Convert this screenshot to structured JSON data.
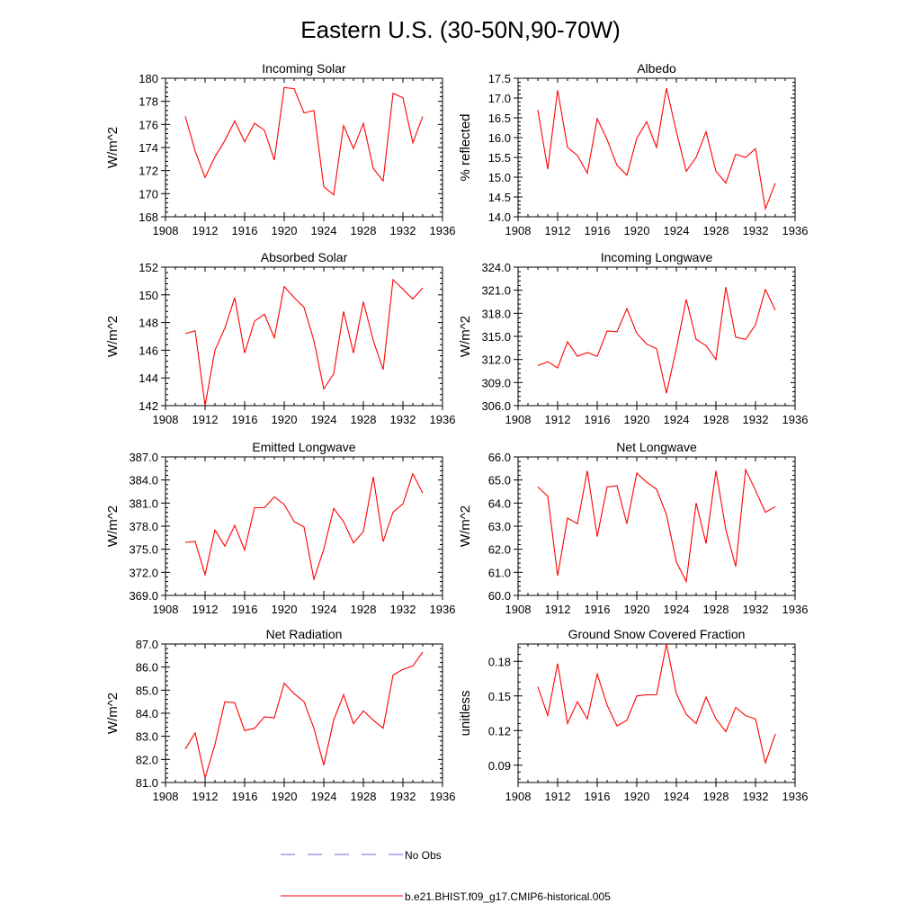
{
  "figure": {
    "title": "Eastern U.S. (30-50N,90-70W)"
  },
  "colors": {
    "model": "#ff0000",
    "obs": "#6b6bdd",
    "axis": "#000000"
  },
  "legend": {
    "obs_label": "No Obs",
    "model_label": "b.e21.BHIST.f09_g17.CMIP6-historical.005"
  },
  "chart_data": [
    {
      "type": "line",
      "title": "Incoming Solar",
      "xlabel": "",
      "ylabel": "W/m^2",
      "xlim": [
        1908,
        1936
      ],
      "ylim": [
        168,
        180
      ],
      "xticks": [
        "1908",
        "1912",
        "1916",
        "1920",
        "1924",
        "1928",
        "1932",
        "1936"
      ],
      "yticks": [
        "168",
        "170",
        "172",
        "174",
        "176",
        "178",
        "180"
      ],
      "x": [
        1910,
        1911,
        1912,
        1913,
        1914,
        1915,
        1916,
        1917,
        1918,
        1919,
        1920,
        1921,
        1922,
        1923,
        1924,
        1925,
        1926,
        1927,
        1928,
        1929,
        1930,
        1931,
        1932,
        1933,
        1934
      ],
      "series": [
        {
          "name": "b.e21.BHIST.f09_g17.CMIP6-historical.005",
          "values": [
            176.7,
            173.7,
            171.4,
            173.2,
            174.6,
            176.3,
            174.5,
            176.1,
            175.5,
            172.9,
            179.2,
            179.1,
            177.0,
            177.2,
            170.6,
            169.9,
            175.9,
            173.9,
            176.1,
            172.2,
            171.1,
            178.7,
            178.3,
            174.4,
            176.7
          ]
        }
      ]
    },
    {
      "type": "line",
      "title": "Albedo",
      "xlabel": "",
      "ylabel": "% reflected",
      "xlim": [
        1908,
        1936
      ],
      "ylim": [
        14.0,
        17.5
      ],
      "xticks": [
        "1908",
        "1912",
        "1916",
        "1920",
        "1924",
        "1928",
        "1932",
        "1936"
      ],
      "yticks": [
        "14.0",
        "14.5",
        "15.0",
        "15.5",
        "16.0",
        "16.5",
        "17.0",
        "17.5"
      ],
      "x": [
        1910,
        1911,
        1912,
        1913,
        1914,
        1915,
        1916,
        1917,
        1918,
        1919,
        1920,
        1921,
        1922,
        1923,
        1924,
        1925,
        1926,
        1927,
        1928,
        1929,
        1930,
        1931,
        1932,
        1933,
        1934
      ],
      "series": [
        {
          "name": "b.e21.BHIST.f09_g17.CMIP6-historical.005",
          "values": [
            16.7,
            15.2,
            17.2,
            15.75,
            15.55,
            15.1,
            16.48,
            15.95,
            15.3,
            15.05,
            15.98,
            16.4,
            15.75,
            17.25,
            16.15,
            15.15,
            15.5,
            16.15,
            15.15,
            14.85,
            15.58,
            15.5,
            15.72,
            14.2,
            14.85
          ]
        }
      ]
    },
    {
      "type": "line",
      "title": "Absorbed Solar",
      "xlabel": "",
      "ylabel": "W/m^2",
      "xlim": [
        1908,
        1936
      ],
      "ylim": [
        142,
        152
      ],
      "xticks": [
        "1908",
        "1912",
        "1916",
        "1920",
        "1924",
        "1928",
        "1932",
        "1936"
      ],
      "yticks": [
        "142",
        "144",
        "146",
        "148",
        "150",
        "152"
      ],
      "x": [
        1910,
        1911,
        1912,
        1913,
        1914,
        1915,
        1916,
        1917,
        1918,
        1919,
        1920,
        1921,
        1922,
        1923,
        1924,
        1925,
        1926,
        1927,
        1928,
        1929,
        1930,
        1931,
        1932,
        1933,
        1934
      ],
      "series": [
        {
          "name": "b.e21.BHIST.f09_g17.CMIP6-historical.005",
          "values": [
            147.2,
            147.4,
            142.0,
            146.0,
            147.6,
            149.8,
            145.8,
            148.1,
            148.6,
            146.9,
            150.6,
            149.8,
            149.1,
            146.7,
            143.2,
            144.3,
            148.8,
            145.8,
            149.5,
            146.7,
            144.6,
            151.1,
            150.4,
            149.7,
            150.5
          ]
        }
      ]
    },
    {
      "type": "line",
      "title": "Incoming Longwave",
      "xlabel": "",
      "ylabel": "W/m^2",
      "xlim": [
        1908,
        1936
      ],
      "ylim": [
        306.0,
        324.0
      ],
      "xticks": [
        "1908",
        "1912",
        "1916",
        "1920",
        "1924",
        "1928",
        "1932",
        "1936"
      ],
      "yticks": [
        "306.0",
        "309.0",
        "312.0",
        "315.0",
        "318.0",
        "321.0",
        "324.0"
      ],
      "x": [
        1910,
        1911,
        1912,
        1913,
        1914,
        1915,
        1916,
        1917,
        1918,
        1919,
        1920,
        1921,
        1922,
        1923,
        1924,
        1925,
        1926,
        1927,
        1928,
        1929,
        1930,
        1931,
        1932,
        1933,
        1934
      ],
      "series": [
        {
          "name": "b.e21.BHIST.f09_g17.CMIP6-historical.005",
          "values": [
            311.2,
            311.7,
            310.9,
            314.3,
            312.4,
            312.9,
            312.4,
            315.7,
            315.6,
            318.6,
            315.4,
            314.0,
            313.4,
            307.6,
            313.4,
            319.8,
            314.6,
            313.8,
            312.0,
            321.4,
            314.9,
            314.6,
            316.5,
            321.1,
            318.4
          ]
        }
      ]
    },
    {
      "type": "line",
      "title": "Emitted Longwave",
      "xlabel": "",
      "ylabel": "W/m^2",
      "xlim": [
        1908,
        1936
      ],
      "ylim": [
        369.0,
        387.0
      ],
      "xticks": [
        "1908",
        "1912",
        "1916",
        "1920",
        "1924",
        "1928",
        "1932",
        "1936"
      ],
      "yticks": [
        "369.0",
        "372.0",
        "375.0",
        "378.0",
        "381.0",
        "384.0",
        "387.0"
      ],
      "x": [
        1910,
        1911,
        1912,
        1913,
        1914,
        1915,
        1916,
        1917,
        1918,
        1919,
        1920,
        1921,
        1922,
        1923,
        1924,
        1925,
        1926,
        1927,
        1928,
        1929,
        1930,
        1931,
        1932,
        1933,
        1934
      ],
      "series": [
        {
          "name": "b.e21.BHIST.f09_g17.CMIP6-historical.005",
          "values": [
            375.9,
            376.0,
            371.7,
            377.5,
            375.4,
            378.1,
            374.9,
            380.4,
            380.4,
            381.8,
            380.8,
            378.6,
            377.9,
            371.1,
            375.0,
            380.3,
            378.6,
            375.8,
            377.3,
            384.4,
            376.0,
            379.8,
            380.9,
            384.8,
            382.3
          ]
        }
      ]
    },
    {
      "type": "line",
      "title": "Net Longwave",
      "xlabel": "",
      "ylabel": "W/m^2",
      "xlim": [
        1908,
        1936
      ],
      "ylim": [
        60.0,
        66.0
      ],
      "xticks": [
        "1908",
        "1912",
        "1916",
        "1920",
        "1924",
        "1928",
        "1932",
        "1936"
      ],
      "yticks": [
        "60.0",
        "61.0",
        "62.0",
        "63.0",
        "64.0",
        "65.0",
        "66.0"
      ],
      "x": [
        1910,
        1911,
        1912,
        1913,
        1914,
        1915,
        1916,
        1917,
        1918,
        1919,
        1920,
        1921,
        1922,
        1923,
        1924,
        1925,
        1926,
        1927,
        1928,
        1929,
        1930,
        1931,
        1932,
        1933,
        1934
      ],
      "series": [
        {
          "name": "b.e21.BHIST.f09_g17.CMIP6-historical.005",
          "values": [
            64.7,
            64.3,
            60.85,
            63.35,
            63.1,
            65.4,
            62.55,
            64.7,
            64.75,
            63.1,
            65.3,
            64.9,
            64.6,
            63.5,
            61.45,
            60.6,
            64.0,
            62.25,
            65.4,
            62.85,
            61.25,
            65.45,
            64.55,
            63.6,
            63.85
          ]
        }
      ]
    },
    {
      "type": "line",
      "title": "Net Radiation",
      "xlabel": "",
      "ylabel": "W/m^2",
      "xlim": [
        1908,
        1936
      ],
      "ylim": [
        81.0,
        87.0
      ],
      "xticks": [
        "1908",
        "1912",
        "1916",
        "1920",
        "1924",
        "1928",
        "1932",
        "1936"
      ],
      "yticks": [
        "81.0",
        "82.0",
        "83.0",
        "84.0",
        "85.0",
        "86.0",
        "87.0"
      ],
      "x": [
        1910,
        1911,
        1912,
        1913,
        1914,
        1915,
        1916,
        1917,
        1918,
        1919,
        1920,
        1921,
        1922,
        1923,
        1924,
        1925,
        1926,
        1927,
        1928,
        1929,
        1930,
        1931,
        1932,
        1933,
        1934
      ],
      "series": [
        {
          "name": "b.e21.BHIST.f09_g17.CMIP6-historical.005",
          "values": [
            82.45,
            83.15,
            81.2,
            82.65,
            84.5,
            84.45,
            83.25,
            83.35,
            83.85,
            83.8,
            85.3,
            84.85,
            84.5,
            83.35,
            81.75,
            83.7,
            84.8,
            83.55,
            84.1,
            83.7,
            83.35,
            85.65,
            85.9,
            86.05,
            86.65
          ]
        }
      ]
    },
    {
      "type": "line",
      "title": "Ground Snow Covered Fraction",
      "xlabel": "",
      "ylabel": "unitless",
      "xlim": [
        1908,
        1936
      ],
      "ylim": [
        0.075,
        0.195
      ],
      "xticks": [
        "1908",
        "1912",
        "1916",
        "1920",
        "1924",
        "1928",
        "1932",
        "1936"
      ],
      "yticks": [
        "0.09",
        "0.12",
        "0.15",
        "0.18"
      ],
      "ytick_values": [
        0.09,
        0.12,
        0.15,
        0.18
      ],
      "x": [
        1910,
        1911,
        1912,
        1913,
        1914,
        1915,
        1916,
        1917,
        1918,
        1919,
        1920,
        1921,
        1922,
        1923,
        1924,
        1925,
        1926,
        1927,
        1928,
        1929,
        1930,
        1931,
        1932,
        1933,
        1934
      ],
      "series": [
        {
          "name": "b.e21.BHIST.f09_g17.CMIP6-historical.005",
          "values": [
            0.158,
            0.133,
            0.178,
            0.126,
            0.145,
            0.13,
            0.169,
            0.142,
            0.124,
            0.129,
            0.15,
            0.151,
            0.151,
            0.195,
            0.152,
            0.134,
            0.126,
            0.149,
            0.13,
            0.119,
            0.14,
            0.133,
            0.13,
            0.092,
            0.117
          ]
        }
      ]
    }
  ]
}
